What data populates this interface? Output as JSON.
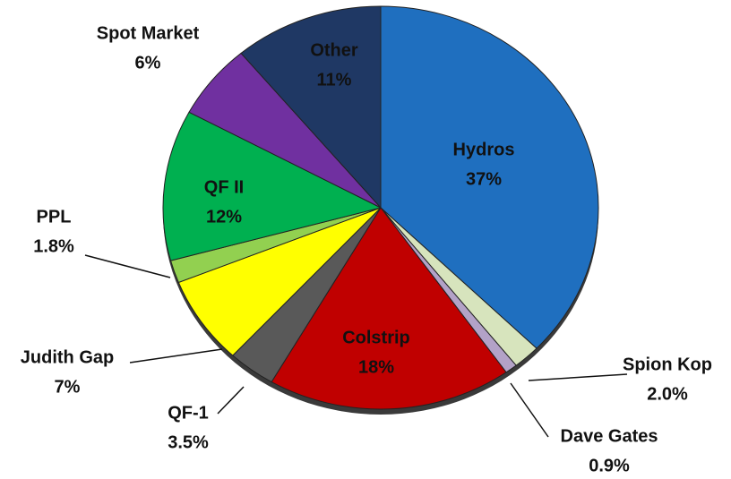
{
  "chart_data": {
    "type": "pie",
    "categories": [
      "Hydros",
      "Spion Kop",
      "Dave Gates",
      "Colstrip",
      "QF-1",
      "Judith Gap",
      "PPL",
      "QF II",
      "Spot Market",
      "Other"
    ],
    "values": [
      37,
      2.0,
      0.9,
      18,
      3.5,
      7,
      1.8,
      12,
      6,
      11
    ],
    "value_labels": [
      "37%",
      "2.0%",
      "0.9%",
      "18%",
      "3.5%",
      "7%",
      "1.8%",
      "12%",
      "6%",
      "11%"
    ],
    "colors": [
      "#1f6fbf",
      "#d7e4bd",
      "#b3a2c7",
      "#c00000",
      "#595959",
      "#ffff00",
      "#92d050",
      "#00b050",
      "#7030a0",
      "#1f3864"
    ]
  }
}
